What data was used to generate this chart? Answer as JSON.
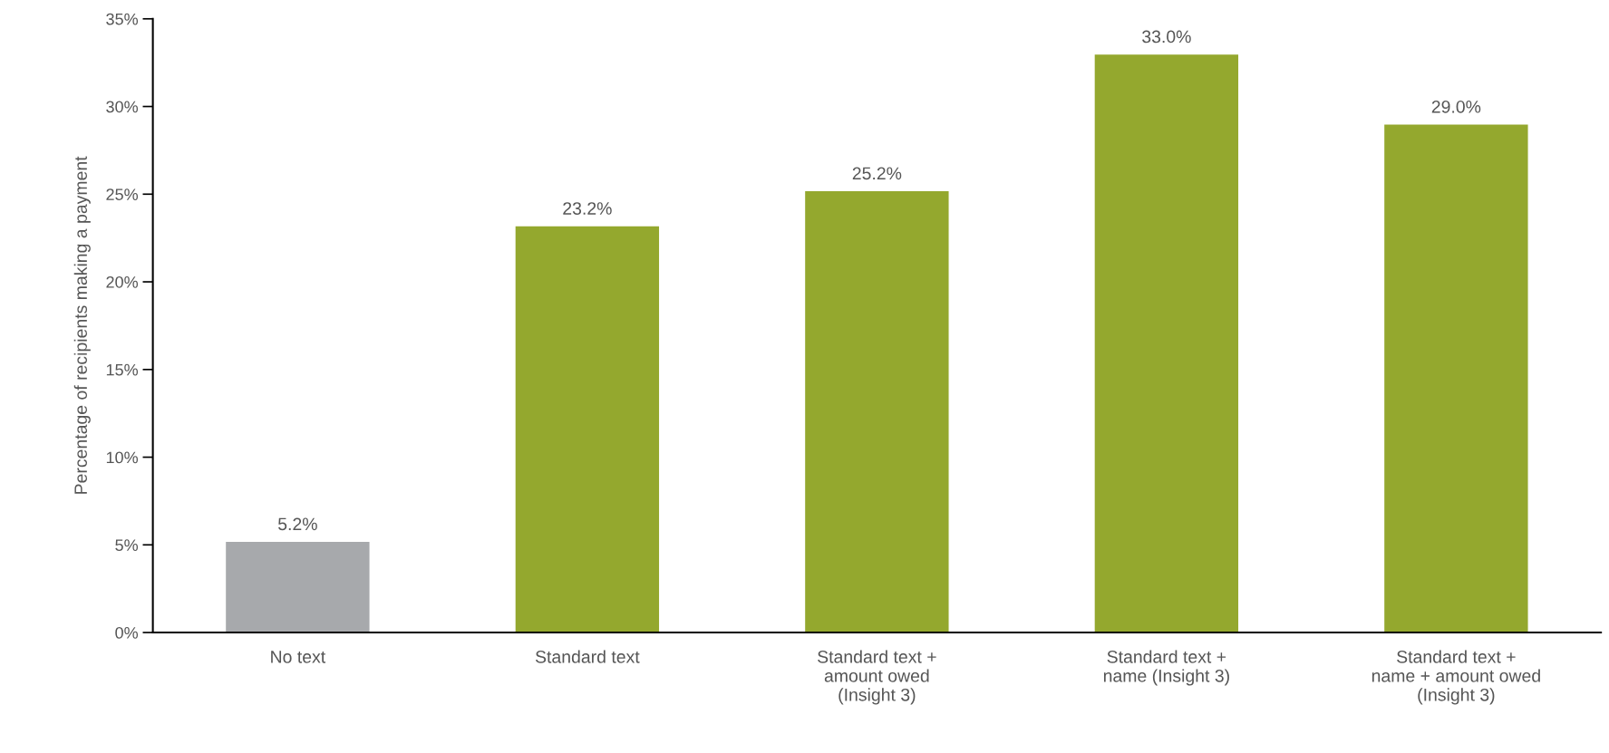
{
  "chart_data": {
    "type": "bar",
    "ylabel": "Percentage of recipients making a payment",
    "categories": [
      "No text",
      "Standard text",
      "Standard text +\namount owed\n(Insight 3)",
      "Standard text +\nname (Insight 3)",
      "Standard text +\nname + amount owed\n(Insight 3)"
    ],
    "values": [
      5.2,
      23.2,
      25.2,
      33.0,
      29.0
    ],
    "colors": [
      "#a7a9ac",
      "#94a82e",
      "#94a82e",
      "#94a82e",
      "#94a82e"
    ],
    "value_labels": [
      "5.2%",
      "23.2%",
      "25.2%",
      "33.0%",
      "29.0%"
    ],
    "ylim": [
      0,
      35
    ],
    "yticks": [
      {
        "value": 0,
        "label": "0%"
      },
      {
        "value": 5,
        "label": "5%"
      },
      {
        "value": 10,
        "label": "10%"
      },
      {
        "value": 15,
        "label": "15%"
      },
      {
        "value": 20,
        "label": "20%"
      },
      {
        "value": 25,
        "label": "25%"
      },
      {
        "value": 30,
        "label": "30%"
      },
      {
        "value": 35,
        "label": "35%"
      }
    ],
    "grid": false
  }
}
